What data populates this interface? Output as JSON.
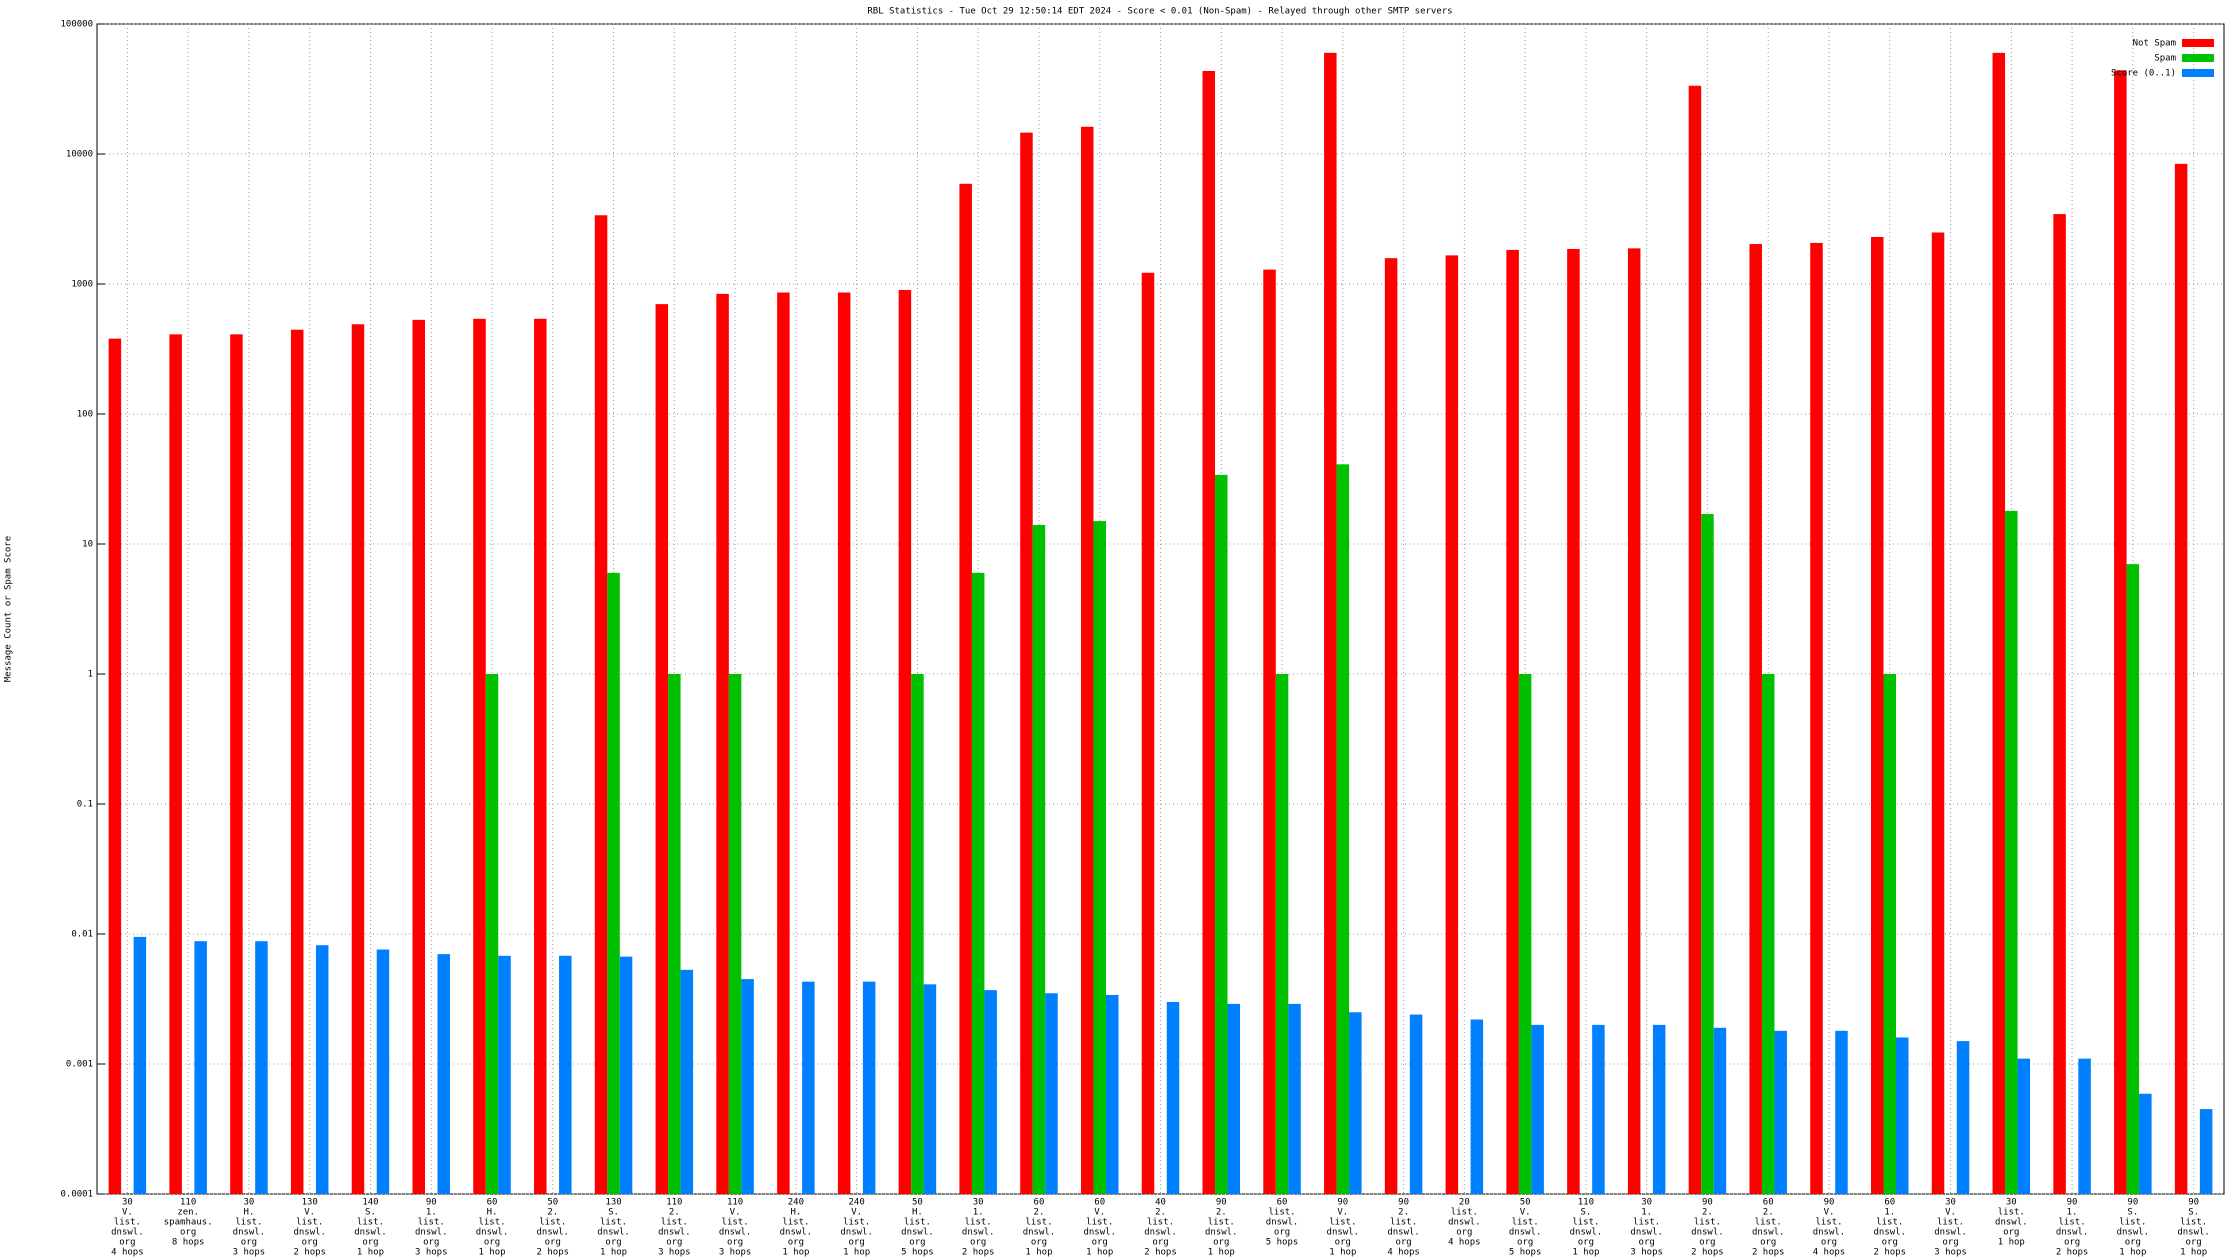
{
  "chart_data": {
    "type": "bar",
    "title": "RBL Statistics - Tue Oct 29 12:50:14 EDT 2024 - Score < 0.01 (Non-Spam) - Relayed through other SMTP servers",
    "ylabel": "Message Count or Spam Score",
    "log_y": true,
    "grid": true,
    "legend": "upper right",
    "ylim": [
      0.0001,
      100000
    ],
    "yticks": [
      0.0001,
      0.001,
      0.01,
      0.1,
      1,
      10,
      100,
      1000,
      10000,
      100000
    ],
    "categories": [
      [
        "30",
        "V.",
        "list.",
        "dnswl.",
        "org",
        "4 hops"
      ],
      [
        "110",
        "zen.",
        "spamhaus.",
        "org",
        "8 hops"
      ],
      [
        "30",
        "H.",
        "list.",
        "dnswl.",
        "org",
        "3 hops"
      ],
      [
        "130",
        "V.",
        "list.",
        "dnswl.",
        "org",
        "2 hops"
      ],
      [
        "140",
        "S.",
        "list.",
        "dnswl.",
        "org",
        "1 hop"
      ],
      [
        "90",
        "1.",
        "list.",
        "dnswl.",
        "org",
        "3 hops"
      ],
      [
        "60",
        "H.",
        "list.",
        "dnswl.",
        "org",
        "1 hop"
      ],
      [
        "50",
        "2.",
        "list.",
        "dnswl.",
        "org",
        "2 hops"
      ],
      [
        "130",
        "S.",
        "list.",
        "dnswl.",
        "org",
        "1 hop"
      ],
      [
        "110",
        "2.",
        "list.",
        "dnswl.",
        "org",
        "3 hops"
      ],
      [
        "110",
        "V.",
        "list.",
        "dnswl.",
        "org",
        "3 hops"
      ],
      [
        "240",
        "H.",
        "list.",
        "dnswl.",
        "org",
        "1 hop"
      ],
      [
        "240",
        "V.",
        "list.",
        "dnswl.",
        "org",
        "1 hop"
      ],
      [
        "50",
        "H.",
        "list.",
        "dnswl.",
        "org",
        "5 hops"
      ],
      [
        "30",
        "1.",
        "list.",
        "dnswl.",
        "org",
        "2 hops"
      ],
      [
        "60",
        "2.",
        "list.",
        "dnswl.",
        "org",
        "1 hop"
      ],
      [
        "60",
        "V.",
        "list.",
        "dnswl.",
        "org",
        "1 hop"
      ],
      [
        "40",
        "2.",
        "list.",
        "dnswl.",
        "org",
        "2 hops"
      ],
      [
        "90",
        "2.",
        "list.",
        "dnswl.",
        "org",
        "1 hop"
      ],
      [
        "60",
        "list.",
        "dnswl.",
        "org",
        "5 hops"
      ],
      [
        "90",
        "V.",
        "list.",
        "dnswl.",
        "org",
        "1 hop"
      ],
      [
        "90",
        "2.",
        "list.",
        "dnswl.",
        "org",
        "4 hops"
      ],
      [
        "20",
        "list.",
        "dnswl.",
        "org",
        "4 hops"
      ],
      [
        "50",
        "V.",
        "list.",
        "dnswl.",
        "org",
        "5 hops"
      ],
      [
        "110",
        "S.",
        "list.",
        "dnswl.",
        "org",
        "1 hop"
      ],
      [
        "30",
        "1.",
        "list.",
        "dnswl.",
        "org",
        "3 hops"
      ],
      [
        "90",
        "2.",
        "list.",
        "dnswl.",
        "org",
        "2 hops"
      ],
      [
        "60",
        "2.",
        "list.",
        "dnswl.",
        "org",
        "2 hops"
      ],
      [
        "90",
        "V.",
        "list.",
        "dnswl.",
        "org",
        "4 hops"
      ],
      [
        "60",
        "1.",
        "list.",
        "dnswl.",
        "org",
        "2 hops"
      ],
      [
        "30",
        "V.",
        "list.",
        "dnswl.",
        "org",
        "3 hops"
      ],
      [
        "30",
        "list.",
        "dnswl.",
        "org",
        "1 hop"
      ],
      [
        "90",
        "1.",
        "list.",
        "dnswl.",
        "org",
        "2 hops"
      ],
      [
        "90",
        "S.",
        "list.",
        "dnswl.",
        "org",
        "1 hop"
      ],
      [
        "90",
        "S.",
        "list.",
        "dnswl.",
        "org",
        "1 hop"
      ]
    ],
    "series": [
      {
        "name": "Not Spam",
        "color": "#ff0000",
        "values": [
          380,
          410,
          410,
          445,
          490,
          530,
          540,
          540,
          3380,
          700,
          840,
          860,
          860,
          900,
          5900,
          14600,
          16200,
          1220,
          43500,
          1290,
          60000,
          1580,
          1660,
          1830,
          1860,
          1880,
          33500,
          2030,
          2070,
          2300,
          2490,
          60000,
          3450,
          44000,
          8400
        ]
      },
      {
        "name": "Spam",
        "color": "#00c000",
        "values": [
          null,
          null,
          null,
          null,
          null,
          null,
          1,
          null,
          6,
          1,
          1,
          null,
          null,
          1,
          6,
          14,
          15,
          null,
          34,
          1,
          41,
          null,
          null,
          1,
          null,
          null,
          17,
          1,
          null,
          1,
          null,
          18,
          null,
          7,
          null
        ]
      },
      {
        "name": "Score (0..1)",
        "color": "#0080ff",
        "values": [
          0.0095,
          0.0088,
          0.0088,
          0.0082,
          0.0076,
          0.007,
          0.0068,
          0.0068,
          0.0067,
          0.0053,
          0.0045,
          0.0043,
          0.0043,
          0.0041,
          0.0037,
          0.0035,
          0.0034,
          0.003,
          0.0029,
          0.0029,
          0.0025,
          0.0024,
          0.0022,
          0.002,
          0.002,
          0.002,
          0.0019,
          0.0018,
          0.0018,
          0.0016,
          0.0015,
          0.0011,
          0.0011,
          0.00059,
          0.00045
        ]
      }
    ]
  }
}
